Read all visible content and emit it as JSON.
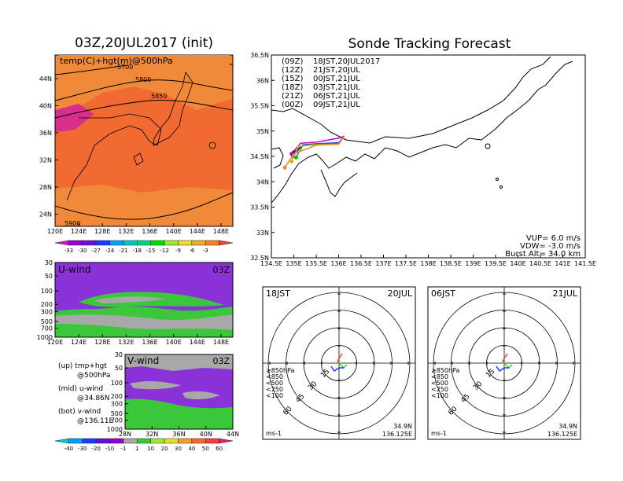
{
  "colors": {
    "temp_fill_main": "#f06a32",
    "temp_fill_warm": "#f08a3a",
    "temp_fill_cold": "#d8308a",
    "purple": "#8a32d8",
    "green": "#3ac83a",
    "gray": "#a8a8a8",
    "orange": "#f08a3a"
  },
  "left_panel": {
    "title": "03Z,20JUL2017 (init)",
    "map_label": "temp(C)+hgt(m)@500hPa",
    "contours": [
      "5700",
      "5800",
      "5850",
      "5900"
    ],
    "lat_ticks": [
      "44N",
      "40N",
      "36N",
      "32N",
      "28N",
      "24N"
    ],
    "lon_ticks": [
      "120E",
      "124E",
      "128E",
      "132E",
      "136E",
      "140E",
      "144E",
      "148E"
    ],
    "temp_colorbar": [
      "-33",
      "-30",
      "-27",
      "-24",
      "-21",
      "-18",
      "-15",
      "-12",
      "-9",
      "-6",
      "-3"
    ],
    "temp_colorbar_colors": [
      "#c81ec8",
      "#9600c8",
      "#6414d2",
      "#1e3cff",
      "#00a0ff",
      "#00c8c8",
      "#00d28c",
      "#00dc00",
      "#a0e632",
      "#e6dc32",
      "#e6af2d",
      "#f08228",
      "#fa3c3c"
    ],
    "uwind": {
      "label": "U-wind",
      "time": "03Z",
      "pressure_ticks": [
        "30",
        "50",
        "100",
        "200",
        "300",
        "500",
        "700",
        "1000"
      ],
      "lon_ticks": [
        "120E",
        "124E",
        "128E",
        "132E",
        "136E",
        "140E",
        "144E",
        "148E"
      ]
    },
    "vwind": {
      "label": "V-wind",
      "time": "03Z",
      "pressure_ticks": [
        "30",
        "50",
        "100",
        "200",
        "300",
        "500",
        "700",
        "1000"
      ],
      "lat_ticks": [
        "28N",
        "32N",
        "36N",
        "40N",
        "44N"
      ]
    },
    "legend_lines": [
      {
        "a": "(up)  tmp+hgt",
        "b": "@500hPa"
      },
      {
        "a": "(mid)  u-wind",
        "b": "@34.86N"
      },
      {
        "a": "(bot)  v-wind",
        "b": "@136.11E"
      }
    ],
    "wind_colorbar": [
      "-40",
      "-30",
      "-20",
      "-10",
      "-1",
      "1",
      "10",
      "20",
      "30",
      "40",
      "50",
      "60"
    ],
    "wind_colorbar_colors": [
      "#00c8c8",
      "#00a0ff",
      "#1e3cff",
      "#6414d2",
      "#9600c8",
      "#a8a8a8",
      "#3ac83a",
      "#a0e632",
      "#e6dc32",
      "#f0a028",
      "#f06a32",
      "#fa3c3c",
      "#e61e78"
    ]
  },
  "right_panel": {
    "title": "Sonde Tracking Forecast",
    "launches": [
      {
        "code": "(09Z)",
        "time": "18JST,20JUL2017",
        "color": "#000000"
      },
      {
        "code": "(12Z)",
        "time": "21JST,20JUL",
        "color": "#c800c8"
      },
      {
        "code": "(15Z)",
        "time": "00JST,21JUL",
        "color": "#1e3cff"
      },
      {
        "code": "(18Z)",
        "time": "03JST,21JUL",
        "color": "#00b400"
      },
      {
        "code": "(21Z)",
        "time": "06JST,21JUL",
        "color": "#e6b400"
      },
      {
        "code": "(00Z)",
        "time": "09JST,21JUL",
        "color": "#f08a3a"
      }
    ],
    "lat_ticks": [
      "36.5N",
      "36N",
      "35.5N",
      "35N",
      "34.5N",
      "34N",
      "33.5N",
      "33N",
      "32.5N"
    ],
    "lon_ticks": [
      "134.5E",
      "135E",
      "135.5E",
      "136E",
      "136.5E",
      "137E",
      "137.5E",
      "138E",
      "138.5E",
      "139E",
      "139.5E",
      "140E",
      "140.5E",
      "141E",
      "141.5E"
    ],
    "params": [
      "VUP=  6.0  m/s",
      "VDW=  -3.0  m/s",
      "Burst Alt=  34.0  km"
    ]
  },
  "chart_data": [
    {
      "type": "map",
      "title": "03Z,20JUL2017 (init)",
      "subtitle": "temp(C)+hgt(m)@500hPa",
      "xlim": [
        120,
        150
      ],
      "ylim": [
        22,
        48
      ],
      "contour_labels": [
        5700,
        5800,
        5850,
        5900
      ]
    },
    {
      "type": "line",
      "title": "Sonde Tracking Forecast",
      "xlim": [
        134.5,
        141.5
      ],
      "ylim": [
        32.5,
        36.5
      ],
      "series": [
        {
          "name": "(09Z) 18JST,20JUL2017",
          "x": [
            136.125,
            136.0,
            135.5,
            135.2,
            135.0
          ],
          "y": [
            34.9,
            34.74,
            34.74,
            34.72,
            34.58
          ]
        },
        {
          "name": "(12Z) 21JST,20JUL",
          "x": [
            136.125,
            136.0,
            135.5,
            135.15,
            134.95
          ],
          "y": [
            34.9,
            34.86,
            34.78,
            34.76,
            34.55
          ]
        },
        {
          "name": "(15Z) 00JST,21JUL",
          "x": [
            136.125,
            136.0,
            135.5,
            135.2,
            134.98
          ],
          "y": [
            34.9,
            34.77,
            34.75,
            34.73,
            34.5
          ]
        },
        {
          "name": "(18Z) 03JST,21JUL",
          "x": [
            136.125,
            136.0,
            135.5,
            135.2,
            135.05
          ],
          "y": [
            34.9,
            34.75,
            34.74,
            34.71,
            34.48
          ]
        },
        {
          "name": "(21Z) 06JST,21JUL",
          "x": [
            136.125,
            136.0,
            135.5,
            135.1,
            134.95
          ],
          "y": [
            34.9,
            34.74,
            34.73,
            34.7,
            34.4
          ]
        },
        {
          "name": "(00Z) 09JST,21JUL",
          "x": [
            136.125,
            136.0,
            135.5,
            135.0,
            134.8
          ],
          "y": [
            34.9,
            34.74,
            34.72,
            34.55,
            34.28
          ]
        }
      ]
    },
    {
      "type": "polar",
      "title_left": "18JST",
      "title_right": "20JUL",
      "rings": [
        15,
        30,
        45,
        60
      ],
      "levels": [
        "≥850hPa",
        "<850",
        "<500",
        "<250",
        "<100"
      ],
      "level_colors": [
        "#fa3c3c",
        "#f0a028",
        "#3ac83a",
        "#00a0ff",
        "#1e3cff"
      ],
      "unit": "ms-1",
      "location": [
        "34.9N",
        "136.125E"
      ]
    },
    {
      "type": "polar",
      "title_left": "06JST",
      "title_right": "21JUL",
      "rings": [
        15,
        30,
        45,
        60
      ],
      "levels": [
        "≥850hPa",
        "<850",
        "<500",
        "<250",
        "<100"
      ],
      "level_colors": [
        "#fa3c3c",
        "#f0a028",
        "#3ac83a",
        "#00a0ff",
        "#1e3cff"
      ],
      "unit": "ms-1",
      "location": [
        "34.9N",
        "136.125E"
      ]
    }
  ]
}
